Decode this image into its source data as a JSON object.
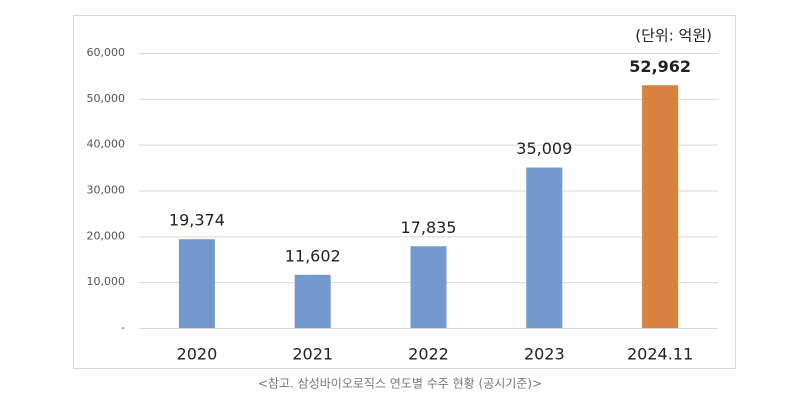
{
  "chart_data": {
    "type": "bar",
    "unit_note": "(단위: 억원)",
    "caption": "<참고. 삼성바이오로직스 연도별 수주 현황 (공시기준)>",
    "categories": [
      "2020",
      "2021",
      "2022",
      "2023",
      "2024.11"
    ],
    "values": [
      19374,
      11602,
      17835,
      35009,
      52962
    ],
    "value_labels": [
      "19,374",
      "11,602",
      "17,835",
      "35,009",
      "52,962"
    ],
    "colors": [
      "#7399cf",
      "#7399cf",
      "#7399cf",
      "#7399cf",
      "#d9823f"
    ],
    "ylim": [
      0,
      60000
    ],
    "yticks": [
      {
        "value": 0,
        "label": "-"
      },
      {
        "value": 10000,
        "label": "10,000"
      },
      {
        "value": 20000,
        "label": "20,000"
      },
      {
        "value": 30000,
        "label": "30,000"
      },
      {
        "value": 40000,
        "label": "40,000"
      },
      {
        "value": 50000,
        "label": "50,000"
      },
      {
        "value": 60000,
        "label": "60,000"
      }
    ],
    "grid": true
  }
}
